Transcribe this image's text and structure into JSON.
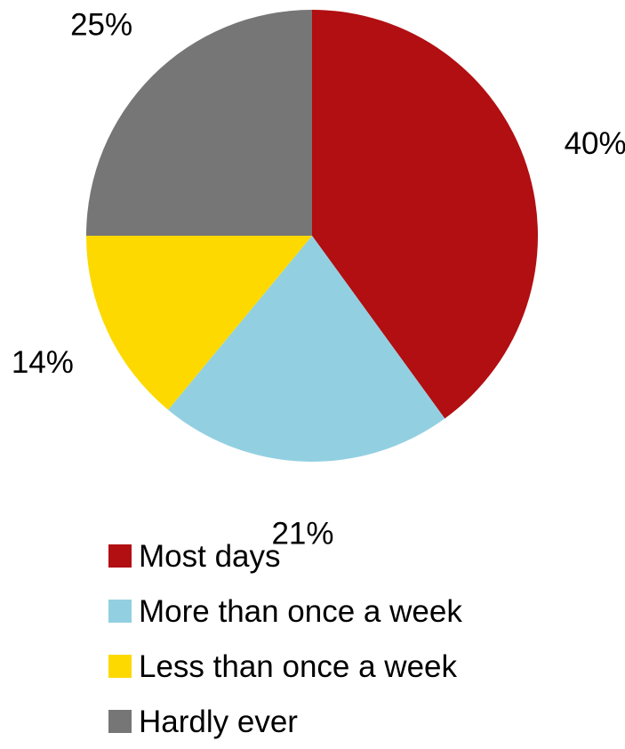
{
  "chart_data": {
    "type": "pie",
    "start_angle": "12 o'clock",
    "direction": "clockwise",
    "legend_position": "bottom",
    "slices": [
      {
        "label": "Most days",
        "value": 40,
        "value_label": "40%",
        "color": "#B10F12"
      },
      {
        "label": "More than once a week",
        "value": 21,
        "value_label": "21%",
        "color": "#92D0E1"
      },
      {
        "label": "Less than once a week",
        "value": 14,
        "value_label": "14%",
        "color": "#FDD900"
      },
      {
        "label": "Hardly ever",
        "value": 25,
        "value_label": "25%",
        "color": "#767676"
      }
    ]
  }
}
